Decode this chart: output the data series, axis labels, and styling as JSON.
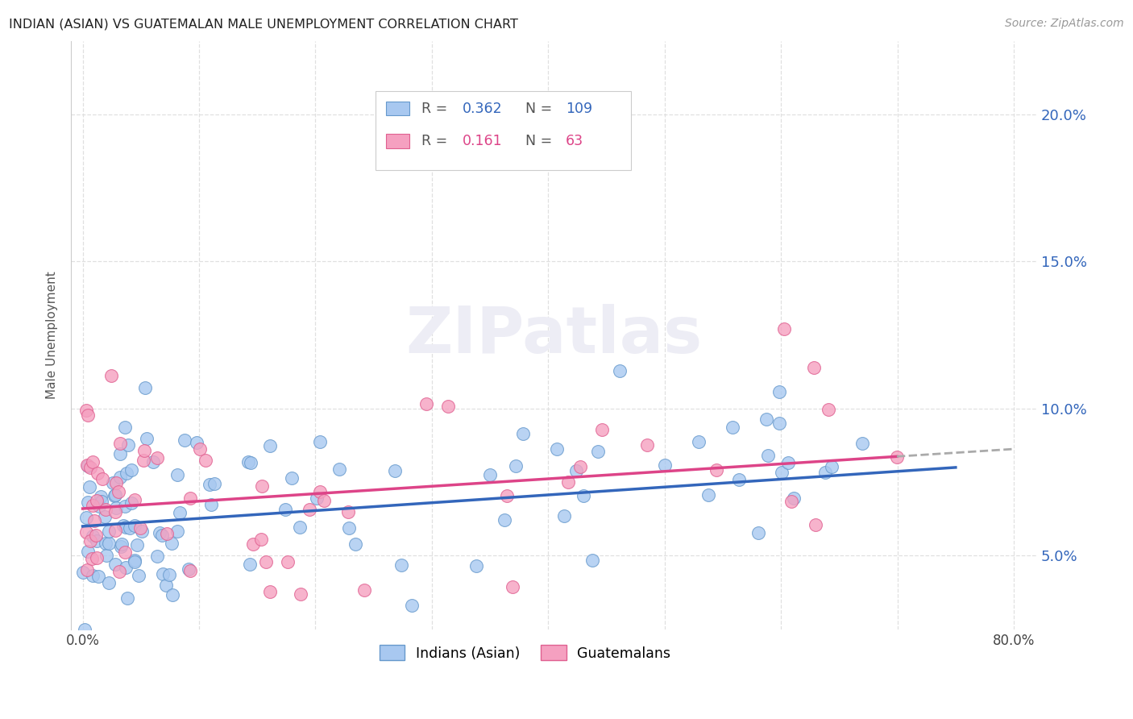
{
  "title": "INDIAN (ASIAN) VS GUATEMALAN MALE UNEMPLOYMENT CORRELATION CHART",
  "source": "Source: ZipAtlas.com",
  "ylabel": "Male Unemployment",
  "ylim": [
    2.5,
    22.5
  ],
  "xlim": [
    -1,
    82
  ],
  "ytick_vals": [
    5,
    10,
    15,
    20
  ],
  "ytick_labels": [
    "5.0%",
    "10.0%",
    "15.0%",
    "20.0%"
  ],
  "xtick_vals": [
    0,
    10,
    20,
    30,
    40,
    50,
    60,
    70,
    80
  ],
  "xtick_labels": [
    "0.0%",
    "",
    "",
    "",
    "",
    "",
    "",
    "",
    "80.0%"
  ],
  "color_blue_fill": "#a8c8f0",
  "color_blue_edge": "#6699cc",
  "color_pink_fill": "#f5a0c0",
  "color_pink_edge": "#e06090",
  "color_trend_blue": "#3366bb",
  "color_trend_pink": "#dd4488",
  "color_trend_dash": "#aaaaaa",
  "color_grid": "#e0e0e0",
  "watermark_color": "#e8e8f0",
  "legend_r1": "R = 0.362",
  "legend_n1": "N = 109",
  "legend_r2": "R =  0.161",
  "legend_n2": "N =  63",
  "legend_color_blue": "#3366bb",
  "legend_color_pink": "#dd4488"
}
